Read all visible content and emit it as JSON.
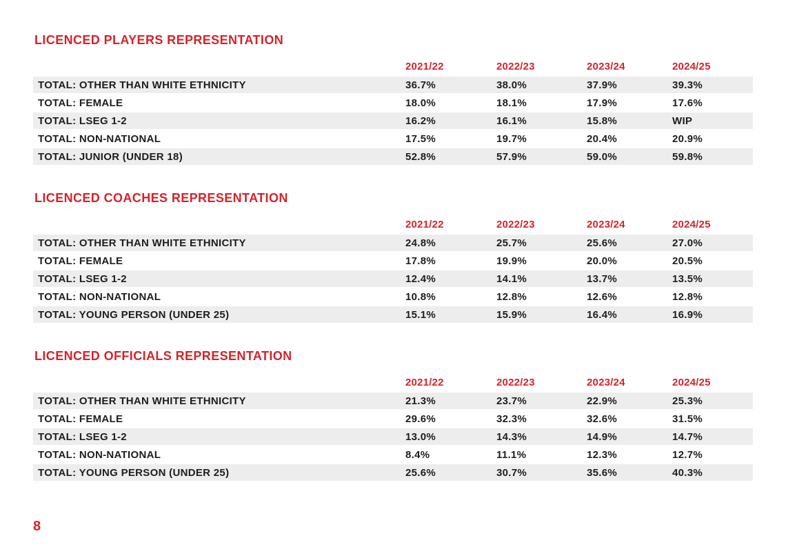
{
  "page": {
    "number": "8"
  },
  "colors": {
    "accent_red": "#d6222a",
    "row_stripe": "#ededed",
    "text_black": "#1d1d1b"
  },
  "sections": [
    {
      "title": "LICENCED PLAYERS REPRESENTATION",
      "columns": [
        "2021/22",
        "2022/23",
        "2023/24",
        "2024/25"
      ],
      "rows": [
        {
          "label": "TOTAL: OTHER THAN WHITE ETHNICITY",
          "values": [
            "36.7%",
            "38.0%",
            "37.9%",
            "39.3%"
          ]
        },
        {
          "label": "TOTAL: FEMALE",
          "values": [
            "18.0%",
            "18.1%",
            "17.9%",
            "17.6%"
          ]
        },
        {
          "label": "TOTAL: LSEG 1-2",
          "values": [
            "16.2%",
            "16.1%",
            "15.8%",
            "WIP"
          ]
        },
        {
          "label": "TOTAL: NON-NATIONAL",
          "values": [
            "17.5%",
            "19.7%",
            "20.4%",
            "20.9%"
          ]
        },
        {
          "label": "TOTAL: JUNIOR (UNDER 18)",
          "values": [
            "52.8%",
            "57.9%",
            "59.0%",
            "59.8%"
          ]
        }
      ]
    },
    {
      "title": "LICENCED COACHES REPRESENTATION",
      "columns": [
        "2021/22",
        "2022/23",
        "2023/24",
        "2024/25"
      ],
      "rows": [
        {
          "label": "TOTAL: OTHER THAN WHITE ETHNICITY",
          "values": [
            "24.8%",
            "25.7%",
            "25.6%",
            "27.0%"
          ]
        },
        {
          "label": "TOTAL: FEMALE",
          "values": [
            "17.8%",
            "19.9%",
            "20.0%",
            "20.5%"
          ]
        },
        {
          "label": "TOTAL: LSEG 1-2",
          "values": [
            "12.4%",
            "14.1%",
            "13.7%",
            "13.5%"
          ]
        },
        {
          "label": "TOTAL: NON-NATIONAL",
          "values": [
            "10.8%",
            "12.8%",
            "12.6%",
            "12.8%"
          ]
        },
        {
          "label": "TOTAL: YOUNG PERSON (UNDER 25)",
          "values": [
            "15.1%",
            "15.9%",
            "16.4%",
            "16.9%"
          ]
        }
      ]
    },
    {
      "title": "LICENCED OFFICIALS REPRESENTATION",
      "columns": [
        "2021/22",
        "2022/23",
        "2023/24",
        "2024/25"
      ],
      "rows": [
        {
          "label": "TOTAL: OTHER THAN WHITE ETHNICITY",
          "values": [
            "21.3%",
            "23.7%",
            "22.9%",
            "25.3%"
          ]
        },
        {
          "label": "TOTAL: FEMALE",
          "values": [
            "29.6%",
            "32.3%",
            "32.6%",
            "31.5%"
          ]
        },
        {
          "label": "TOTAL: LSEG 1-2",
          "values": [
            "13.0%",
            "14.3%",
            "14.9%",
            "14.7%"
          ]
        },
        {
          "label": "TOTAL: NON-NATIONAL",
          "values": [
            "8.4%",
            "11.1%",
            "12.3%",
            "12.7%"
          ]
        },
        {
          "label": "TOTAL: YOUNG PERSON (UNDER 25)",
          "values": [
            "25.6%",
            "30.7%",
            "35.6%",
            "40.3%"
          ]
        }
      ]
    }
  ]
}
